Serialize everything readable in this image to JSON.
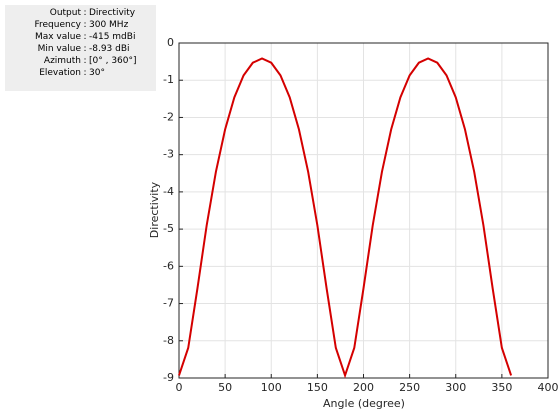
{
  "info": {
    "separator": ":",
    "rows": [
      {
        "label": "Output",
        "value": "Directivity"
      },
      {
        "label": "Frequency",
        "value": "300 MHz"
      },
      {
        "label": "Max value",
        "value": "-415 mdBi"
      },
      {
        "label": "Min value",
        "value": "-8.93 dBi"
      },
      {
        "label": "Azimuth",
        "value": "[0° , 360°]"
      },
      {
        "label": "Elevation",
        "value": "30°"
      }
    ]
  },
  "chart_data": {
    "type": "line",
    "x_label": "Angle (degree)",
    "y_label": "Directivity",
    "x": [
      0,
      10,
      20,
      30,
      40,
      50,
      60,
      70,
      80,
      90,
      100,
      110,
      120,
      130,
      140,
      150,
      160,
      170,
      180,
      190,
      200,
      210,
      220,
      230,
      240,
      250,
      260,
      270,
      280,
      290,
      300,
      310,
      320,
      330,
      340,
      350,
      360
    ],
    "series": [
      {
        "name": "Directivity",
        "color": "#d40000",
        "values": [
          -8.93,
          -8.19,
          -6.59,
          -4.9,
          -3.46,
          -2.32,
          -1.46,
          -0.87,
          -0.53,
          -0.415,
          -0.53,
          -0.87,
          -1.46,
          -2.32,
          -3.46,
          -4.9,
          -6.59,
          -8.19,
          -8.93,
          -8.19,
          -6.59,
          -4.9,
          -3.46,
          -2.32,
          -1.46,
          -0.87,
          -0.53,
          -0.415,
          -0.53,
          -0.87,
          -1.46,
          -2.32,
          -3.46,
          -4.9,
          -6.59,
          -8.19,
          -8.93
        ]
      }
    ],
    "xlim": [
      0,
      400
    ],
    "xticks": [
      0,
      50,
      100,
      150,
      200,
      250,
      300,
      350,
      400
    ],
    "ylim": [
      -9,
      0
    ],
    "yticks": [
      0,
      -1,
      -2,
      -3,
      -4,
      -5,
      -6,
      -7,
      -8,
      -9
    ],
    "grid": true
  }
}
